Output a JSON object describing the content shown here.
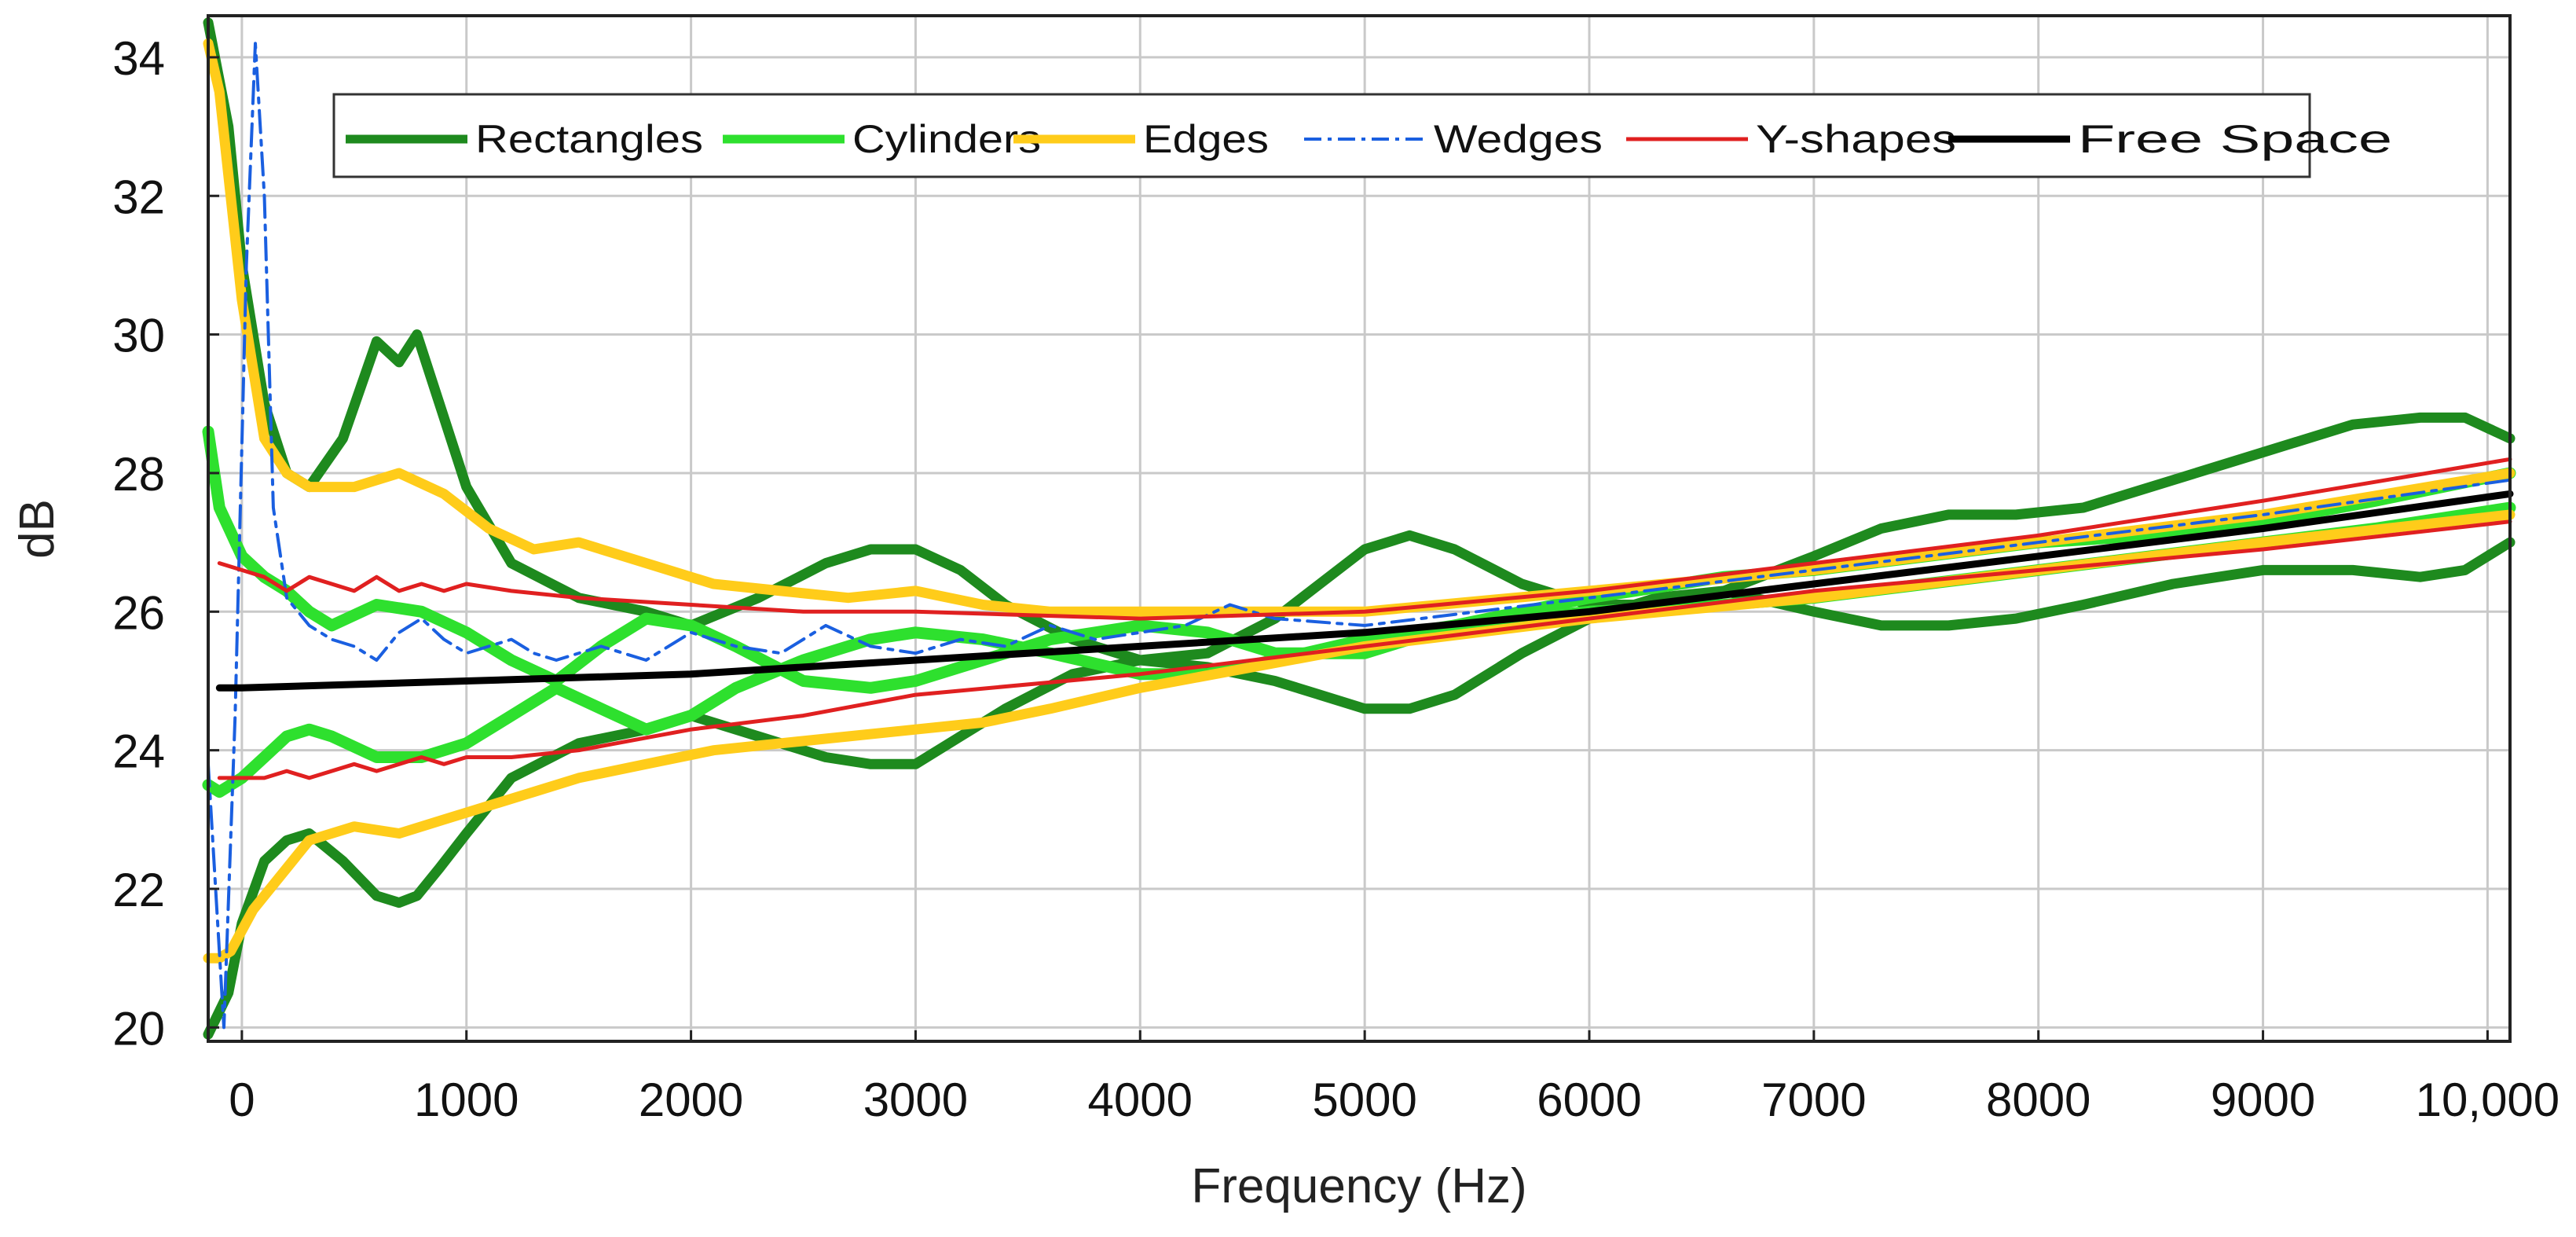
{
  "chart_data": {
    "type": "line",
    "title": "",
    "xlabel": "Frequency (Hz)",
    "ylabel": "dB",
    "xlim": [
      -150,
      10100
    ],
    "ylim": [
      19.8,
      34.6
    ],
    "x_ticks": [
      0,
      1000,
      2000,
      3000,
      4000,
      5000,
      6000,
      7000,
      8000,
      9000,
      10000
    ],
    "x_tick_labels": [
      "0",
      "1000",
      "2000",
      "3000",
      "4000",
      "5000",
      "6000",
      "7000",
      "8000",
      "9000",
      "10,000"
    ],
    "y_ticks": [
      20,
      22,
      24,
      26,
      28,
      30,
      32,
      34
    ],
    "y_tick_labels": [
      "20",
      "22",
      "24",
      "26",
      "28",
      "30",
      "32",
      "34"
    ],
    "grid": true,
    "legend_position": "top",
    "series": [
      {
        "name": "Rectangles",
        "color": "#1e8a1e",
        "style": "solid",
        "bands": [
          {
            "x": [
              -150,
              -60,
              0,
              100,
              200,
              300,
              450,
              600,
              700,
              780,
              880,
              1000,
              1200,
              1500,
              1800,
              2000,
              2300,
              2600,
              2800,
              3000,
              3200,
              3400,
              3700,
              4000,
              4300,
              4600,
              4800,
              5000,
              5200,
              5400,
              5700,
              6000,
              6300,
              6600,
              7000,
              7300,
              7600,
              7900,
              8200,
              8600,
              9000,
              9400,
              9700,
              9900,
              10100
            ],
            "y": [
              34.5,
              33.0,
              31.0,
              29.0,
              28.0,
              27.8,
              28.5,
              29.9,
              29.6,
              30.0,
              29.0,
              27.8,
              26.7,
              26.2,
              26.0,
              25.8,
              26.2,
              26.7,
              26.9,
              26.9,
              26.6,
              26.1,
              25.6,
              25.3,
              25.4,
              25.9,
              26.4,
              26.9,
              27.1,
              26.9,
              26.4,
              26.1,
              26.1,
              26.3,
              26.8,
              27.2,
              27.4,
              27.4,
              27.5,
              27.9,
              28.3,
              28.7,
              28.8,
              28.8,
              28.5
            ]
          },
          {
            "x": [
              -150,
              -60,
              0,
              100,
              200,
              300,
              450,
              600,
              700,
              780,
              880,
              1000,
              1200,
              1500,
              1800,
              2000,
              2300,
              2600,
              2800,
              3000,
              3200,
              3400,
              3700,
              4000,
              4300,
              4600,
              4800,
              5000,
              5200,
              5400,
              5700,
              6000,
              6300,
              6600,
              7000,
              7300,
              7600,
              7900,
              8200,
              8600,
              9000,
              9400,
              9700,
              9900,
              10100
            ],
            "y": [
              19.9,
              20.5,
              21.5,
              22.4,
              22.7,
              22.8,
              22.4,
              21.9,
              21.8,
              21.9,
              22.3,
              22.8,
              23.6,
              24.1,
              24.3,
              24.5,
              24.2,
              23.9,
              23.8,
              23.8,
              24.2,
              24.6,
              25.1,
              25.3,
              25.2,
              25.0,
              24.8,
              24.6,
              24.6,
              24.8,
              25.4,
              25.9,
              26.2,
              26.3,
              26.0,
              25.8,
              25.8,
              25.9,
              26.1,
              26.4,
              26.6,
              26.6,
              26.5,
              26.6,
              27.0
            ]
          }
        ]
      },
      {
        "name": "Cylinders",
        "color": "#2ee02e",
        "style": "solid",
        "bands": [
          {
            "x": [
              -150,
              -100,
              0,
              100,
              200,
              300,
              400,
              600,
              800,
              1000,
              1200,
              1400,
              1600,
              1800,
              2000,
              2200,
              2500,
              2800,
              3000,
              3300,
              3600,
              4000,
              4300,
              4600,
              5000,
              5400,
              6000,
              6600,
              7000,
              7500,
              8000,
              8500,
              9000,
              9500,
              10100
            ],
            "y": [
              28.6,
              27.5,
              26.8,
              26.5,
              26.3,
              26.0,
              25.8,
              26.1,
              26.0,
              25.7,
              25.3,
              25.0,
              25.5,
              25.9,
              25.8,
              25.5,
              25.0,
              24.9,
              25.0,
              25.3,
              25.6,
              25.8,
              25.7,
              25.4,
              25.4,
              25.8,
              26.2,
              26.5,
              26.6,
              26.8,
              27.0,
              27.1,
              27.3,
              27.6,
              28.0
            ]
          },
          {
            "x": [
              -150,
              -100,
              0,
              100,
              200,
              300,
              400,
              600,
              800,
              1000,
              1200,
              1400,
              1600,
              1800,
              2000,
              2200,
              2500,
              2800,
              3000,
              3300,
              3600,
              4000,
              4300,
              4600,
              5000,
              5400,
              6000,
              6600,
              7000,
              7500,
              8000,
              8500,
              9000,
              9500,
              10100
            ],
            "y": [
              23.5,
              23.4,
              23.6,
              23.9,
              24.2,
              24.3,
              24.2,
              23.9,
              23.9,
              24.1,
              24.5,
              24.9,
              24.6,
              24.3,
              24.5,
              24.9,
              25.3,
              25.6,
              25.7,
              25.6,
              25.4,
              25.1,
              25.1,
              25.3,
              25.6,
              25.8,
              26.0,
              26.1,
              26.2,
              26.4,
              26.6,
              26.8,
              27.0,
              27.2,
              27.5
            ]
          }
        ]
      },
      {
        "name": "Edges",
        "color": "#ffcc1a",
        "style": "solid",
        "bands": [
          {
            "x": [
              -150,
              -100,
              -50,
              0,
              50,
              100,
              200,
              300,
              500,
              700,
              900,
              1100,
              1300,
              1500,
              1800,
              2100,
              2400,
              2700,
              3000,
              3300,
              3600,
              4000,
              4500,
              5000,
              6000,
              7000,
              8000,
              9000,
              10100
            ],
            "y": [
              34.2,
              33.5,
              32.0,
              30.5,
              29.5,
              28.5,
              28.0,
              27.8,
              27.8,
              28.0,
              27.7,
              27.2,
              26.9,
              27.0,
              26.7,
              26.4,
              26.3,
              26.2,
              26.3,
              26.1,
              26.0,
              26.0,
              26.0,
              26.0,
              26.3,
              26.6,
              27.0,
              27.4,
              28.0
            ]
          },
          {
            "x": [
              -150,
              -100,
              -50,
              0,
              50,
              100,
              200,
              300,
              500,
              700,
              900,
              1100,
              1300,
              1500,
              1800,
              2100,
              2400,
              2700,
              3000,
              3300,
              3600,
              4000,
              4500,
              5000,
              6000,
              7000,
              8000,
              9000,
              10100
            ],
            "y": [
              21.0,
              21.0,
              21.1,
              21.4,
              21.7,
              21.9,
              22.3,
              22.7,
              22.9,
              22.8,
              23.0,
              23.2,
              23.4,
              23.6,
              23.8,
              24.0,
              24.1,
              24.2,
              24.3,
              24.4,
              24.6,
              24.9,
              25.2,
              25.5,
              25.9,
              26.2,
              26.6,
              27.0,
              27.4
            ]
          }
        ]
      },
      {
        "name": "Wedges",
        "color": "#1a5fe0",
        "style": "dashdot",
        "bands": [
          {
            "x": [
              -150,
              -80,
              -30,
              20,
              60,
              100,
              140,
              200,
              300,
              400,
              500,
              600,
              700,
              800,
              900,
              1000,
              1100,
              1200,
              1300,
              1400,
              1600,
              1800,
              2000,
              2200,
              2400,
              2600,
              2800,
              3000,
              3200,
              3400,
              3600,
              3800,
              4000,
              4200,
              4400,
              4600,
              5000,
              5500,
              6000,
              6500,
              7000,
              7500,
              8000,
              9000,
              10100
            ],
            "y": [
              23.8,
              20.0,
              24.5,
              31.0,
              34.2,
              32.0,
              27.5,
              26.2,
              25.8,
              25.6,
              25.5,
              25.3,
              25.7,
              25.9,
              25.6,
              25.4,
              25.5,
              25.6,
              25.4,
              25.3,
              25.5,
              25.3,
              25.7,
              25.5,
              25.4,
              25.8,
              25.5,
              25.4,
              25.6,
              25.5,
              25.8,
              25.6,
              25.7,
              25.8,
              26.1,
              25.9,
              25.8,
              26.0,
              26.2,
              26.4,
              26.6,
              26.8,
              27.0,
              27.4,
              27.9
            ]
          }
        ]
      },
      {
        "name": "Y-shapes",
        "color": "#e02020",
        "style": "solid",
        "bands": [
          {
            "x": [
              -100,
              0,
              100,
              200,
              300,
              400,
              500,
              600,
              700,
              800,
              900,
              1000,
              1200,
              1500,
              2000,
              2500,
              3000,
              4000,
              5000,
              6000,
              7000,
              8000,
              9000,
              10100
            ],
            "y": [
              26.7,
              26.6,
              26.5,
              26.3,
              26.5,
              26.4,
              26.3,
              26.5,
              26.3,
              26.4,
              26.3,
              26.4,
              26.3,
              26.2,
              26.1,
              26.0,
              26.0,
              25.9,
              26.0,
              26.3,
              26.7,
              27.1,
              27.6,
              28.2
            ]
          },
          {
            "x": [
              -100,
              0,
              100,
              200,
              300,
              400,
              500,
              600,
              700,
              800,
              900,
              1000,
              1200,
              1500,
              2000,
              2500,
              3000,
              4000,
              5000,
              6000,
              7000,
              8000,
              9000,
              10100
            ],
            "y": [
              23.6,
              23.6,
              23.6,
              23.7,
              23.6,
              23.7,
              23.8,
              23.7,
              23.8,
              23.9,
              23.8,
              23.9,
              23.9,
              24.0,
              24.3,
              24.5,
              24.8,
              25.1,
              25.5,
              25.9,
              26.3,
              26.6,
              26.9,
              27.3
            ]
          }
        ]
      },
      {
        "name": "Free Space",
        "color": "#000000",
        "style": "solid",
        "bands": [
          {
            "x": [
              -100,
              0,
              1000,
              2000,
              3000,
              4000,
              5000,
              6000,
              7000,
              8000,
              9000,
              10100
            ],
            "y": [
              24.9,
              24.9,
              25.0,
              25.1,
              25.3,
              25.5,
              25.7,
              26.0,
              26.4,
              26.8,
              27.2,
              27.7
            ]
          }
        ]
      }
    ]
  }
}
